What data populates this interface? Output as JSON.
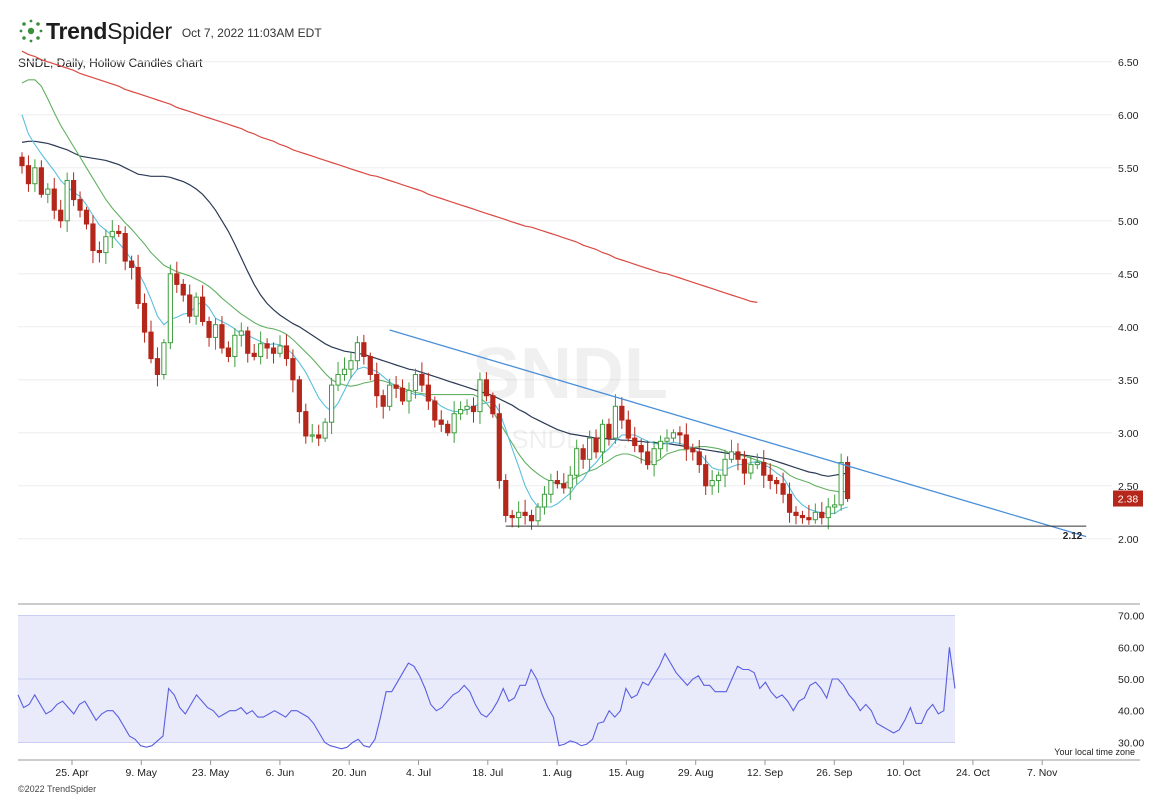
{
  "header": {
    "brand_light": "Trend",
    "brand_bold": "Spider",
    "logo_icon": "spider-dots-icon",
    "timestamp": "Oct 7, 2022 11:03AM EDT"
  },
  "subtitle": "SNDL, Daily, Hollow Candles chart",
  "watermark": {
    "symbol": "SNDL",
    "company": "SNDL Inc."
  },
  "copyright": "©2022 TrendSpider",
  "timezone_label": "Your local time zone",
  "colors": {
    "up": "#3f9e3f",
    "down": "#b5261b",
    "sma200": "#d94a43",
    "sma50": "#2b3a55",
    "sma20": "#62b062",
    "sma9": "#5cbfdc",
    "trendline": "#4a90d9",
    "rsi": "#5a5ee0",
    "rsi_band": "#e9ebfb"
  },
  "chart_data": [
    {
      "type": "candlestick",
      "symbol": "SNDL",
      "interval": "Daily",
      "price_ticks": [
        "6.50",
        "6.00",
        "5.50",
        "5.00",
        "4.50",
        "4.00",
        "3.50",
        "3.00",
        "2.50",
        "2.00"
      ],
      "ylim": [
        1.8,
        6.8
      ],
      "last_price_label": "2.38",
      "support_label": "2.12",
      "date_ticks": [
        "25. Apr",
        "9. May",
        "23. May",
        "6. Jun",
        "20. Jun",
        "4. Jul",
        "18. Jul",
        "1. Aug",
        "15. Aug",
        "29. Aug",
        "12. Sep",
        "26. Sep",
        "10. Oct",
        "24. Oct",
        "7. Nov"
      ],
      "closes": [
        5.52,
        5.35,
        5.5,
        5.25,
        5.3,
        5.1,
        5.0,
        5.38,
        5.2,
        5.1,
        4.97,
        4.72,
        4.7,
        4.85,
        4.9,
        4.88,
        4.62,
        4.56,
        4.22,
        3.95,
        3.7,
        3.55,
        3.85,
        4.5,
        4.4,
        4.3,
        4.1,
        4.28,
        4.05,
        3.9,
        4.02,
        3.8,
        3.72,
        3.92,
        3.96,
        3.75,
        3.72,
        3.84,
        3.8,
        3.75,
        3.82,
        3.7,
        3.5,
        3.2,
        2.97,
        2.98,
        2.95,
        3.1,
        3.45,
        3.55,
        3.6,
        3.68,
        3.85,
        3.72,
        3.55,
        3.35,
        3.25,
        3.45,
        3.42,
        3.3,
        3.4,
        3.55,
        3.45,
        3.3,
        3.12,
        3.08,
        3.0,
        3.18,
        3.22,
        3.25,
        3.2,
        3.5,
        3.35,
        3.18,
        2.55,
        2.22,
        2.2,
        2.25,
        2.22,
        2.17,
        2.3,
        2.42,
        2.55,
        2.52,
        2.48,
        2.6,
        2.85,
        2.75,
        2.95,
        2.82,
        3.08,
        2.95,
        3.25,
        3.12,
        2.95,
        2.88,
        2.82,
        2.7,
        2.85,
        2.92,
        2.95,
        3.0,
        2.98,
        2.85,
        2.82,
        2.7,
        2.5,
        2.55,
        2.6,
        2.75,
        2.82,
        2.75,
        2.62,
        2.7,
        2.72,
        2.6,
        2.55,
        2.52,
        2.42,
        2.25,
        2.22,
        2.2,
        2.18,
        2.25,
        2.2,
        2.3,
        2.32,
        2.72,
        2.38
      ],
      "sma9": [
        6.0,
        5.82,
        5.72,
        5.63,
        5.55,
        5.47,
        5.38,
        5.32,
        5.27,
        5.23,
        5.15,
        5.05,
        4.96,
        4.91,
        4.86,
        4.79,
        4.72,
        4.63,
        4.52,
        4.4,
        4.26,
        4.1,
        4.02,
        4.07,
        4.09,
        4.12,
        4.13,
        4.2,
        4.24,
        4.18,
        4.08,
        4.05,
        4.02,
        3.98,
        3.93,
        3.92,
        3.89,
        3.86,
        3.83,
        3.84,
        3.83,
        3.8,
        3.74,
        3.66,
        3.57,
        3.45,
        3.33,
        3.25,
        3.2,
        3.28,
        3.4,
        3.52,
        3.6,
        3.62,
        3.6,
        3.58,
        3.53,
        3.48,
        3.43,
        3.4,
        3.38,
        3.36,
        3.36,
        3.33,
        3.3,
        3.25,
        3.22,
        3.2,
        3.2,
        3.22,
        3.25,
        3.27,
        3.28,
        3.3,
        3.2,
        3.03,
        2.85,
        2.68,
        2.5,
        2.38,
        2.3,
        2.3,
        2.3,
        2.33,
        2.38,
        2.43,
        2.51,
        2.56,
        2.66,
        2.72,
        2.8,
        2.85,
        2.92,
        2.98,
        2.98,
        2.98,
        2.95,
        2.92,
        2.9,
        2.89,
        2.9,
        2.91,
        2.9,
        2.88,
        2.85,
        2.81,
        2.74,
        2.67,
        2.65,
        2.65,
        2.68,
        2.7,
        2.7,
        2.72,
        2.73,
        2.7,
        2.67,
        2.62,
        2.58,
        2.48,
        2.38,
        2.32,
        2.28,
        2.26,
        2.24,
        2.24,
        2.24,
        2.28,
        2.3
      ],
      "sma20": [
        6.3,
        6.33,
        6.33,
        6.27,
        6.15,
        6.02,
        5.9,
        5.8,
        5.7,
        5.6,
        5.5,
        5.4,
        5.3,
        5.2,
        5.12,
        5.05,
        4.98,
        4.92,
        4.85,
        4.78,
        4.7,
        4.64,
        4.58,
        4.55,
        4.52,
        4.5,
        4.48,
        4.45,
        4.42,
        4.38,
        4.33,
        4.27,
        4.22,
        4.17,
        4.12,
        4.08,
        4.04,
        4.01,
        3.99,
        3.98,
        3.96,
        3.93,
        3.88,
        3.82,
        3.76,
        3.7,
        3.63,
        3.56,
        3.5,
        3.47,
        3.45,
        3.44,
        3.45,
        3.47,
        3.48,
        3.5,
        3.49,
        3.47,
        3.45,
        3.42,
        3.4,
        3.38,
        3.37,
        3.36,
        3.36,
        3.36,
        3.36,
        3.36,
        3.36,
        3.36,
        3.36,
        3.33,
        3.28,
        3.2,
        3.1,
        3.0,
        2.9,
        2.8,
        2.72,
        2.66,
        2.61,
        2.57,
        2.54,
        2.52,
        2.52,
        2.55,
        2.58,
        2.61,
        2.64,
        2.66,
        2.7,
        2.74,
        2.78,
        2.8,
        2.8,
        2.78,
        2.75,
        2.73,
        2.72,
        2.75,
        2.8,
        2.82,
        2.84,
        2.84,
        2.86,
        2.87,
        2.87,
        2.86,
        2.85,
        2.83,
        2.8,
        2.79,
        2.78,
        2.76,
        2.74,
        2.72,
        2.7,
        2.68,
        2.65,
        2.6,
        2.57,
        2.55,
        2.53,
        2.5,
        2.48,
        2.46,
        2.45,
        2.44,
        2.45
      ],
      "sma50": [
        5.74,
        5.75,
        5.75,
        5.74,
        5.73,
        5.71,
        5.69,
        5.67,
        5.64,
        5.61,
        5.6,
        5.59,
        5.58,
        5.57,
        5.55,
        5.53,
        5.5,
        5.47,
        5.44,
        5.43,
        5.42,
        5.42,
        5.42,
        5.41,
        5.39,
        5.37,
        5.34,
        5.3,
        5.25,
        5.18,
        5.1,
        5.0,
        4.9,
        4.78,
        4.65,
        4.52,
        4.4,
        4.3,
        4.22,
        4.16,
        4.11,
        4.07,
        4.03,
        4.0,
        3.96,
        3.92,
        3.88,
        3.84,
        3.81,
        3.79,
        3.77,
        3.76,
        3.75,
        3.74,
        3.72,
        3.7,
        3.68,
        3.66,
        3.64,
        3.62,
        3.6,
        3.59,
        3.57,
        3.55,
        3.53,
        3.51,
        3.49,
        3.47,
        3.45,
        3.43,
        3.41,
        3.39,
        3.37,
        3.35,
        3.32,
        3.29,
        3.26,
        3.22,
        3.19,
        3.15,
        3.12,
        3.09,
        3.06,
        3.03,
        3.01,
        2.99,
        2.98,
        2.97,
        2.96,
        2.95,
        2.95,
        2.94,
        2.94,
        2.93,
        2.93,
        2.92,
        2.92,
        2.91,
        2.91,
        2.9,
        2.9,
        2.89,
        2.88,
        2.87,
        2.86,
        2.85,
        2.84,
        2.83,
        2.82,
        2.81,
        2.8,
        2.8,
        2.79,
        2.78,
        2.77,
        2.76,
        2.75,
        2.73,
        2.71,
        2.69,
        2.67,
        2.65,
        2.63,
        2.62,
        2.6,
        2.59,
        2.6,
        2.61,
        2.62
      ],
      "sma200": [
        6.6,
        6.57,
        6.55,
        6.52,
        6.5,
        6.48,
        6.46,
        6.44,
        6.42,
        6.39,
        6.37,
        6.35,
        6.33,
        6.31,
        6.29,
        6.27,
        6.24,
        6.22,
        6.2,
        6.18,
        6.16,
        6.14,
        6.12,
        6.1,
        6.07,
        6.05,
        6.03,
        6.01,
        5.99,
        5.97,
        5.95,
        5.93,
        5.91,
        5.89,
        5.87,
        5.84,
        5.82,
        5.79,
        5.77,
        5.75,
        5.72,
        5.7,
        5.67,
        5.65,
        5.63,
        5.61,
        5.59,
        5.57,
        5.55,
        5.53,
        5.51,
        5.49,
        5.47,
        5.45,
        5.43,
        5.42,
        5.4,
        5.38,
        5.36,
        5.34,
        5.32,
        5.3,
        5.28,
        5.25,
        5.23,
        5.21,
        5.19,
        5.17,
        5.15,
        5.13,
        5.11,
        5.09,
        5.07,
        5.05,
        5.03,
        5.01,
        4.99,
        4.97,
        4.95,
        4.94,
        4.92,
        4.9,
        4.88,
        4.86,
        4.84,
        4.82,
        4.8,
        4.77,
        4.75,
        4.73,
        4.7,
        4.68,
        4.65,
        4.63,
        4.61,
        4.59,
        4.57,
        4.55,
        4.53,
        4.51,
        4.5,
        4.48,
        4.46,
        4.44,
        4.42,
        4.4,
        4.38,
        4.36,
        4.34,
        4.32,
        4.3,
        4.28,
        4.26,
        4.24,
        4.23
      ],
      "trendline": {
        "from": {
          "bar": 57,
          "price": 3.97
        },
        "to": {
          "bar": 165,
          "price": 2.02
        }
      },
      "support_line": {
        "from_bar": 75,
        "to_bar": 165,
        "price": 2.12
      }
    },
    {
      "type": "line",
      "name": "RSI",
      "ticks": [
        "70.00",
        "60.00",
        "50.00",
        "40.00",
        "30.00"
      ],
      "ylim": [
        27,
        73
      ],
      "band": [
        30,
        70
      ],
      "midline": 50,
      "values": [
        45,
        41,
        42,
        45,
        42,
        39,
        40,
        42,
        43,
        41,
        39,
        42,
        43,
        40,
        37,
        39,
        40,
        40,
        38,
        35,
        32,
        31,
        29,
        28.5,
        29,
        30.5,
        32,
        47,
        45,
        41,
        39,
        42,
        45,
        43,
        41,
        40,
        38,
        39,
        40,
        40,
        41,
        39,
        40,
        38,
        38,
        39,
        40,
        39,
        38,
        40,
        40,
        39,
        38,
        36,
        33,
        30,
        29,
        28.5,
        28,
        28.5,
        30,
        31,
        29,
        28.5,
        31,
        38,
        46,
        46,
        49,
        52,
        55,
        54,
        51,
        47,
        42,
        40,
        41,
        43,
        45,
        46,
        48,
        46,
        42,
        39,
        38,
        40,
        43,
        47,
        43,
        44,
        48,
        48,
        53,
        50,
        45,
        41,
        38,
        29,
        29.5,
        30.5,
        30,
        29,
        29.5,
        31,
        36,
        36.5,
        40,
        38,
        40,
        47,
        44,
        45,
        49,
        48,
        51,
        54,
        58,
        55,
        52,
        50,
        48,
        50,
        51,
        48,
        48,
        46,
        46,
        46,
        50,
        54,
        53,
        53,
        52,
        47,
        49,
        46,
        44,
        45,
        43,
        40,
        43,
        44,
        48,
        49,
        47,
        44,
        50,
        50,
        48,
        45,
        43,
        40,
        42,
        40,
        36,
        35,
        34,
        33,
        34,
        37,
        41,
        36,
        36,
        40,
        42,
        39,
        40,
        60,
        47
      ]
    }
  ]
}
